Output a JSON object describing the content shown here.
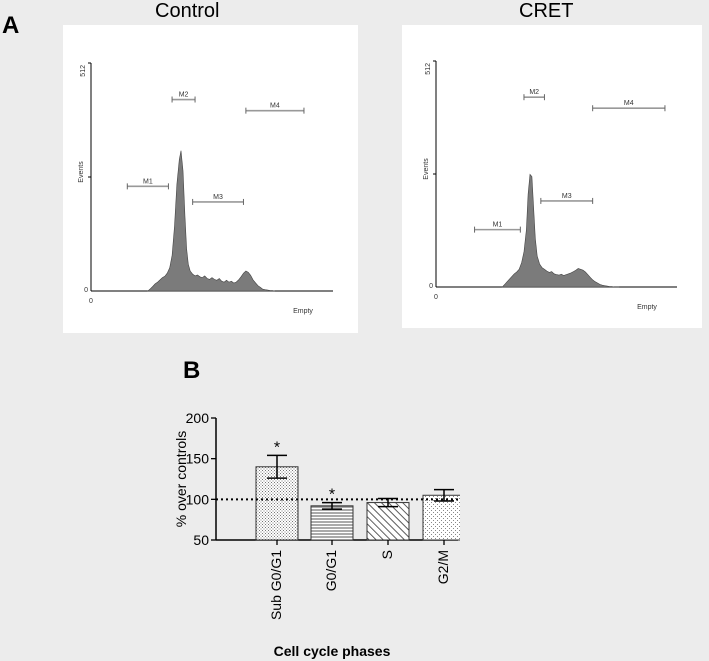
{
  "panel_labels": {
    "a": "A",
    "b": "B"
  },
  "colors": {
    "background": "#ececec",
    "histogram_fill": "#7b7b7b",
    "marker_line": "#999999",
    "bar_stroke": "#333333"
  },
  "chart_data": [
    {
      "type": "area",
      "title": "Control",
      "ylabel": "Events",
      "xlabel": "Empty",
      "y_tick_labels": {
        "min": "0",
        "max": "512"
      },
      "x_tick_labels": {
        "min": "0"
      },
      "xlim": [
        0,
        1000
      ],
      "ylim": [
        0,
        512
      ],
      "markers": [
        {
          "name": "M1",
          "start": 150,
          "end": 320,
          "level": 235
        },
        {
          "name": "M2",
          "start": 335,
          "end": 430,
          "level": 430
        },
        {
          "name": "M3",
          "start": 420,
          "end": 630,
          "level": 200
        },
        {
          "name": "M4",
          "start": 640,
          "end": 880,
          "level": 405
        }
      ],
      "x": [
        235,
        245,
        255,
        265,
        275,
        285,
        295,
        305,
        315,
        325,
        335,
        345,
        355,
        365,
        372,
        380,
        388,
        395,
        402,
        410,
        420,
        430,
        440,
        450,
        460,
        470,
        480,
        490,
        500,
        510,
        520,
        530,
        540,
        550,
        560,
        570,
        580,
        590,
        600,
        610,
        620,
        630,
        640,
        650,
        660,
        670,
        680,
        690,
        700,
        710,
        720,
        730,
        740,
        750,
        760
      ],
      "y": [
        0,
        5,
        10,
        16,
        20,
        25,
        30,
        33,
        40,
        52,
        80,
        145,
        240,
        295,
        315,
        270,
        170,
        95,
        60,
        45,
        38,
        34,
        36,
        32,
        30,
        34,
        28,
        26,
        30,
        26,
        24,
        28,
        22,
        20,
        24,
        20,
        22,
        18,
        20,
        25,
        32,
        40,
        45,
        42,
        35,
        25,
        18,
        12,
        8,
        4,
        3,
        2,
        1,
        1,
        0
      ]
    },
    {
      "type": "area",
      "title": "CRET",
      "ylabel": "Events",
      "xlabel": "Empty",
      "y_tick_labels": {
        "min": "0",
        "max": "512"
      },
      "x_tick_labels": {
        "min": "0"
      },
      "xlim": [
        0,
        1000
      ],
      "ylim": [
        0,
        512
      ],
      "markers": [
        {
          "name": "M1",
          "start": 160,
          "end": 350,
          "level": 130
        },
        {
          "name": "M2",
          "start": 365,
          "end": 450,
          "level": 430
        },
        {
          "name": "M3",
          "start": 435,
          "end": 650,
          "level": 195
        },
        {
          "name": "M4",
          "start": 650,
          "end": 950,
          "level": 405
        }
      ],
      "x": [
        275,
        285,
        295,
        305,
        315,
        325,
        335,
        345,
        355,
        365,
        375,
        382,
        390,
        398,
        405,
        412,
        420,
        430,
        440,
        450,
        460,
        470,
        480,
        490,
        500,
        510,
        520,
        530,
        540,
        550,
        560,
        570,
        580,
        590,
        600,
        610,
        620,
        630,
        640,
        650,
        660,
        670,
        680,
        690,
        700,
        710,
        720,
        730,
        740,
        750,
        760
      ],
      "y": [
        0,
        6,
        12,
        18,
        24,
        30,
        34,
        40,
        55,
        80,
        130,
        210,
        255,
        250,
        180,
        110,
        70,
        52,
        44,
        40,
        36,
        33,
        35,
        30,
        28,
        27,
        29,
        26,
        28,
        30,
        32,
        35,
        38,
        42,
        40,
        38,
        34,
        28,
        22,
        16,
        12,
        9,
        6,
        4,
        3,
        2,
        1,
        1,
        0,
        0,
        0
      ]
    },
    {
      "type": "bar",
      "ylabel": "% over controls",
      "xlabel": "Cell cycle phases",
      "categories": [
        "Sub G0/G1",
        "G0/G1",
        "S",
        "G2/M"
      ],
      "values": [
        140,
        92,
        96,
        105
      ],
      "errors": [
        14,
        4,
        5,
        7
      ],
      "significance": [
        "*",
        "*",
        "",
        ""
      ],
      "ylim": [
        50,
        200
      ],
      "yticks": [
        "50",
        "100",
        "150",
        "200"
      ],
      "reference_line": 100,
      "patterns": [
        "dots",
        "horizontal",
        "diagonal",
        "sparse-dots"
      ]
    }
  ]
}
